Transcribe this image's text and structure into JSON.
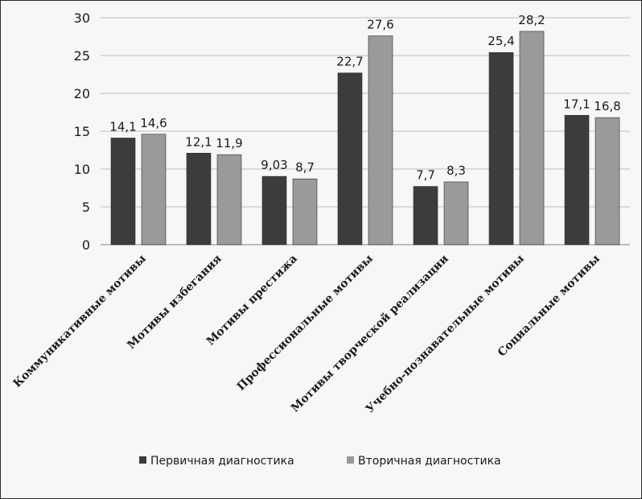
{
  "chart_data": {
    "type": "bar",
    "categories": [
      "Коммуникативные мотивы",
      "Мотивы избегания",
      "Мотивы престижа",
      "Профессиональные мотивы",
      "Мотивы творческой реализации",
      "Учебно-познавательные мотивы",
      "Социальные мотивы"
    ],
    "series": [
      {
        "name": "Первичная диагностика",
        "values": [
          14.1,
          12.1,
          9.03,
          22.7,
          7.7,
          25.4,
          17.1
        ],
        "labels": [
          "14,1",
          "12,1",
          "9,03",
          "22,7",
          "7,7",
          "25,4",
          "17,1"
        ],
        "color": "#3c3c3c"
      },
      {
        "name": "Вторичная диагностика",
        "values": [
          14.6,
          11.9,
          8.7,
          27.6,
          8.3,
          28.2,
          16.8
        ],
        "labels": [
          "14,6",
          "11,9",
          "8,7",
          "27,6",
          "8,3",
          "28,2",
          "16,8"
        ],
        "color": "#9a9a9a"
      }
    ],
    "y_ticks": [
      "0",
      "5",
      "10",
      "15",
      "20",
      "25",
      "30"
    ],
    "ylim": [
      0,
      30
    ],
    "grid": true,
    "legend_position": "bottom"
  }
}
